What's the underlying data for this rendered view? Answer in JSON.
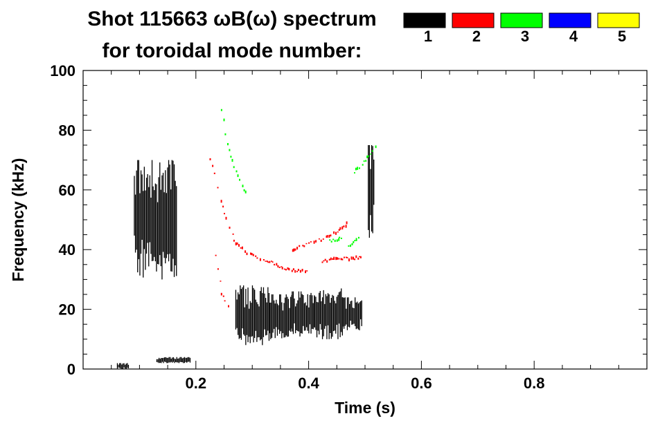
{
  "chart_data": {
    "type": "heatmap",
    "title_line1": "Shot 115663 ωB(ω) spectrum",
    "title_line2": "for toroidal mode number:",
    "xlabel": "Time (s)",
    "ylabel": "Frequency (kHz)",
    "xlim": [
      0.0,
      1.0
    ],
    "ylim": [
      0,
      100
    ],
    "x_ticks": [
      0.2,
      0.4,
      0.6,
      0.8
    ],
    "x_tick_labels": [
      "0.2",
      "0.4",
      "0.6",
      "0.8"
    ],
    "y_ticks": [
      0,
      20,
      40,
      60,
      80,
      100
    ],
    "y_tick_labels": [
      "0",
      "20",
      "40",
      "60",
      "80",
      "100"
    ],
    "legend": {
      "placement": "top-right",
      "entries": [
        {
          "label": "1",
          "color": "#000000"
        },
        {
          "label": "2",
          "color": "#ff0000"
        },
        {
          "label": "3",
          "color": "#00ff00"
        },
        {
          "label": "4",
          "color": "#0000ff"
        },
        {
          "label": "5",
          "color": "#ffff00"
        }
      ]
    },
    "series": [
      {
        "mode": "1",
        "color": "#000000",
        "regions": [
          {
            "t": [
              0.09,
              0.165
            ],
            "f": [
              30,
              70
            ]
          },
          {
            "t": [
              0.27,
              0.33
            ],
            "f": [
              8,
              28
            ]
          },
          {
            "t": [
              0.33,
              0.37
            ],
            "f": [
              10,
              25
            ]
          },
          {
            "t": [
              0.37,
              0.41
            ],
            "f": [
              10,
              26
            ]
          },
          {
            "t": [
              0.41,
              0.46
            ],
            "f": [
              10,
              27
            ]
          },
          {
            "t": [
              0.46,
              0.495
            ],
            "f": [
              13,
              24
            ]
          },
          {
            "t": [
              0.505,
              0.515
            ],
            "f": [
              42,
              75
            ]
          },
          {
            "t": [
              0.06,
              0.08
            ],
            "f": [
              0,
              2
            ]
          },
          {
            "t": [
              0.13,
              0.19
            ],
            "f": [
              2,
              4
            ]
          }
        ]
      },
      {
        "mode": "2",
        "color": "#ff0000",
        "tracks": [
          {
            "t": [
              0.225,
              0.25,
              0.27,
              0.29,
              0.31,
              0.33,
              0.35,
              0.37,
              0.39,
              0.4
            ],
            "f": [
              70,
              52,
              42,
              39,
              37,
              36,
              34,
              33,
              33,
              33
            ]
          },
          {
            "t": [
              0.37,
              0.4,
              0.43,
              0.45,
              0.47
            ],
            "f": [
              40,
              42,
              44,
              46,
              49
            ]
          },
          {
            "t": [
              0.42,
              0.45,
              0.48,
              0.495
            ],
            "f": [
              36,
              37,
              37,
              38
            ]
          },
          {
            "t": [
              0.235,
              0.245,
              0.26
            ],
            "f": [
              38,
              25,
              20
            ]
          }
        ]
      },
      {
        "mode": "3",
        "color": "#00ff00",
        "tracks": [
          {
            "t": [
              0.245,
              0.255,
              0.27,
              0.29
            ],
            "f": [
              87,
              75,
              66,
              58
            ]
          },
          {
            "t": [
              0.43,
              0.44,
              0.46
            ],
            "f": [
              45,
              43,
              44
            ]
          },
          {
            "t": [
              0.48,
              0.5,
              0.52
            ],
            "f": [
              66,
              70,
              75
            ]
          },
          {
            "t": [
              0.47,
              0.49
            ],
            "f": [
              41,
              44
            ]
          }
        ]
      }
    ]
  }
}
